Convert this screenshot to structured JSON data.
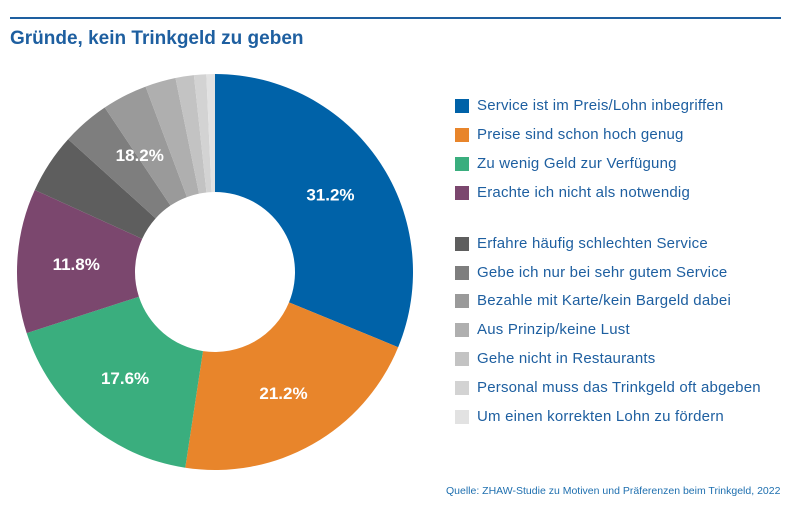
{
  "title": "Gründe, kein Trinkgeld zu geben",
  "source": "Quelle: ZHAW-Studie zu Motiven und Präferenzen beim Trinkgeld, 2022",
  "chart_data": {
    "type": "pie",
    "donut": true,
    "categories": [
      "Service ist im Preis/Lohn inbegriffen",
      "Preise sind schon hoch genug",
      "Zu wenig Geld zur Verfügung",
      "Erachte ich nicht als notwendig",
      "Erfahre häufig schlechten Service",
      "Gebe ich nur bei sehr gutem Service",
      "Bezahle mit Karte/kein Bargeld dabei",
      "Aus Prinzip/keine Lust",
      "Gehe nicht in Restaurants",
      "Personal muss das Trinkgeld oft abgeben",
      "Um einen korrekten Lohn zu fördern"
    ],
    "values": [
      31.2,
      21.2,
      17.6,
      11.8,
      4.9,
      3.9,
      3.7,
      2.5,
      1.5,
      1.0,
      0.7
    ],
    "colors": [
      "#0062a8",
      "#e8852b",
      "#3aae7e",
      "#7b476e",
      "#5e5e5e",
      "#7e7e7e",
      "#9a9a9a",
      "#afafaf",
      "#c3c3c3",
      "#d3d3d3",
      "#e2e2e2"
    ],
    "data_labels": [
      {
        "text": "31.2%",
        "slices": [
          0
        ]
      },
      {
        "text": "21.2%",
        "slices": [
          1
        ]
      },
      {
        "text": "17.6%",
        "slices": [
          2
        ]
      },
      {
        "text": "11.8%",
        "slices": [
          3
        ]
      },
      {
        "text": "18.2%",
        "slices": [
          4,
          5,
          6,
          7,
          8,
          9,
          10
        ]
      }
    ],
    "legend_placement": "right"
  }
}
